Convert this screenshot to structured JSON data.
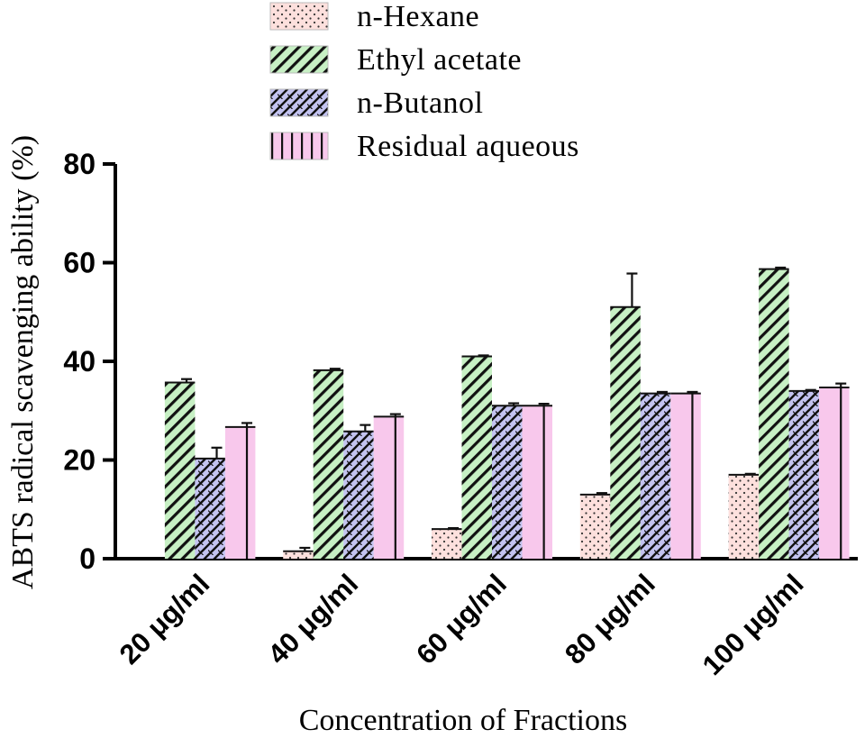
{
  "chart_data": {
    "type": "bar",
    "title": "",
    "xlabel": "Concentration of Fractions",
    "ylabel": "ABTS radical scavenging ability (%)",
    "ylim": [
      0,
      80
    ],
    "yticks": [
      0,
      20,
      40,
      60,
      80
    ],
    "grid": false,
    "legend_position": "top",
    "categories": [
      "20 μg/ml",
      "40 μg/ml",
      "60 μg/ml",
      "80 μg/ml",
      "100 μg/ml"
    ],
    "series": [
      {
        "name": "n-Hexane",
        "values": [
          0,
          1.5,
          6,
          13,
          17
        ],
        "errors": [
          0,
          0.7,
          0.2,
          0.3,
          0.2
        ],
        "color": "#fde0dd",
        "pattern": "dots"
      },
      {
        "name": "Ethyl acetate",
        "values": [
          35.7,
          38.2,
          41,
          51,
          58.7
        ],
        "errors": [
          0.7,
          0.3,
          0.2,
          6.8,
          0.3
        ],
        "color": "#c7f0c4",
        "pattern": "diagonal"
      },
      {
        "name": "n-Butanol",
        "values": [
          20.3,
          25.8,
          31,
          33.5,
          34
        ],
        "errors": [
          2.2,
          1.3,
          0.5,
          0.3,
          0.2
        ],
        "color": "#c3c3f0",
        "pattern": "crosshatch"
      },
      {
        "name": "Residual aqueous",
        "values": [
          26.7,
          28.8,
          31,
          33.5,
          34.7
        ],
        "errors": [
          0.8,
          0.5,
          0.4,
          0.3,
          0.8
        ],
        "color": "#f8c8ec",
        "pattern": "vertical"
      }
    ]
  }
}
